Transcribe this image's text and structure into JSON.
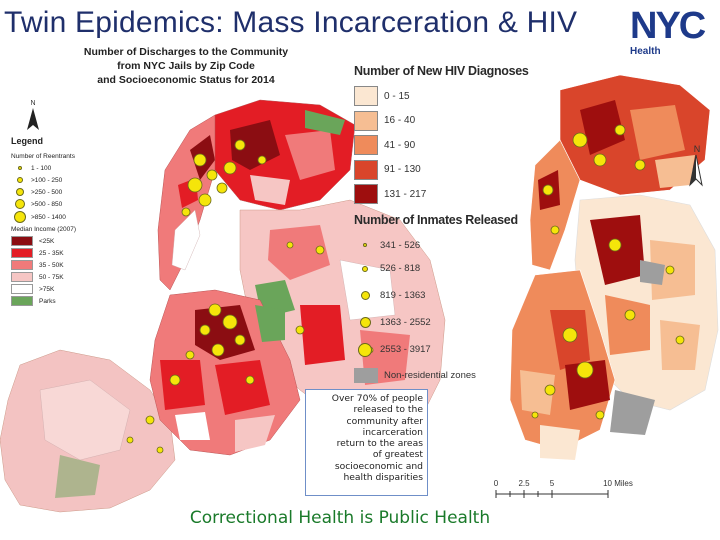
{
  "slide": {
    "title": "Twin Epidemics: Mass Incarceration & HIV",
    "footer": "Correctional Health is Public Health"
  },
  "logo": {
    "text": "NYC",
    "subtitle": "Health",
    "color": "#1e3a8a"
  },
  "left_map": {
    "heading_lines": [
      "Number of Discharges to the Community",
      "from NYC Jails by Zip Code",
      "and Socioeconomic Status for 2014"
    ],
    "north_label": "N",
    "legend": {
      "title": "Legend",
      "reentrants_title": "Number of Reentrants",
      "reentrants": [
        "1 - 100",
        ">100 - 250",
        ">250 - 500",
        ">500 - 850",
        ">850 - 1400"
      ],
      "income_title": "Median Income (2007)",
      "income": [
        {
          "label": "<25K",
          "color": "#8b0d12"
        },
        {
          "label": "25 - 35K",
          "color": "#e31d25"
        },
        {
          "label": "35 - 50K",
          "color": "#f07a7a"
        },
        {
          "label": "50 - 75K",
          "color": "#f6c6c4"
        },
        {
          "label": ">75K",
          "color": "#ffffff"
        },
        {
          "label": "Parks",
          "color": "#6aa55a"
        }
      ]
    }
  },
  "right_map": {
    "north_label": "N",
    "hiv_title": "Number of New HIV Diagnoses",
    "hiv": [
      {
        "label": "0 - 15",
        "color": "#fbe7d2"
      },
      {
        "label": "16 - 40",
        "color": "#f6be93"
      },
      {
        "label": "41 - 90",
        "color": "#ef8b5b"
      },
      {
        "label": "91 - 130",
        "color": "#d9452b"
      },
      {
        "label": "131 - 217",
        "color": "#9e0e0e"
      }
    ],
    "inmates_title": "Number of Inmates Released",
    "inmates": [
      "341 - 526",
      "526 - 818",
      "819 - 1363",
      "1363 - 2552",
      "2553 - 3917"
    ],
    "nonres_label": "Non-residential zones",
    "scale": {
      "labels": [
        "0",
        "2.5",
        "5",
        "10 Miles"
      ]
    }
  },
  "callout": {
    "lines": [
      "Over 70% of people",
      "released to the",
      "community after",
      "incarceration",
      "return to the areas",
      "of greatest",
      "socioeconomic and",
      "health disparities"
    ]
  }
}
